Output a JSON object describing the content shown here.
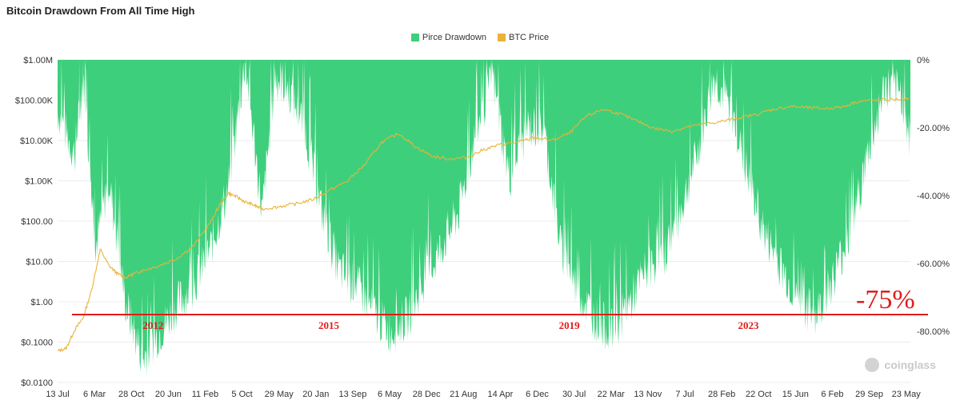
{
  "title": "Bitcoin Drawdown From All Time High",
  "legend": [
    {
      "label": "Pirce Drawdown",
      "color": "#3ecf7c"
    },
    {
      "label": "BTC Price",
      "color": "#e8b33b"
    }
  ],
  "watermark": "coinglass",
  "annotations": {
    "threshold_label": "-75%",
    "threshold_value": -75,
    "threshold_color": "#e21b1b",
    "cycle_years": [
      {
        "label": "2012",
        "x": "2012"
      },
      {
        "label": "2015",
        "x": "2015"
      },
      {
        "label": "2019",
        "x": "2019"
      },
      {
        "label": "2023",
        "x": "2023"
      }
    ]
  },
  "chart_data": {
    "type": "area",
    "x_tick_labels": [
      "13 Jul",
      "6 Mar",
      "28 Oct",
      "20 Jun",
      "11 Feb",
      "5 Oct",
      "29 May",
      "20 Jan",
      "13 Sep",
      "6 May",
      "28 Dec",
      "21 Aug",
      "14 Apr",
      "6 Dec",
      "30 Jul",
      "22 Mar",
      "13 Nov",
      "7 Jul",
      "28 Feb",
      "22 Oct",
      "15 Jun",
      "6 Feb",
      "29 Sep",
      "23 May"
    ],
    "y_left_tick_labels": [
      "$1.00M",
      "$100.00K",
      "$10.00K",
      "$1.00K",
      "$100.00",
      "$10.00",
      "$1.00",
      "$0.1000",
      "$0.0100"
    ],
    "y_left_scale": "log",
    "y_left_range": [
      0.01,
      1000000
    ],
    "y_right_tick_labels": [
      "0%",
      "-20.00%",
      "-40.00%",
      "-60.00%",
      "-80.00%"
    ],
    "y_right_range": [
      -95,
      0
    ],
    "grid": true,
    "legend_position": "top-center",
    "series": [
      {
        "name": "Pirce Drawdown",
        "kind": "area",
        "color": "#3ecf7c",
        "x": [
          0.0,
          0.02,
          0.03,
          0.045,
          0.06,
          0.08,
          0.1,
          0.12,
          0.14,
          0.16,
          0.18,
          0.2,
          0.22,
          0.24,
          0.255,
          0.27,
          0.29,
          0.31,
          0.33,
          0.35,
          0.37,
          0.39,
          0.41,
          0.43,
          0.45,
          0.47,
          0.49,
          0.51,
          0.53,
          0.55,
          0.57,
          0.59,
          0.61,
          0.63,
          0.65,
          0.67,
          0.69,
          0.71,
          0.73,
          0.75,
          0.77,
          0.79,
          0.81,
          0.83,
          0.85,
          0.87,
          0.89,
          0.91,
          0.93,
          0.95,
          0.97,
          0.99,
          1.0
        ],
        "values": [
          -15,
          -28,
          -5,
          -55,
          -35,
          -72,
          -88,
          -80,
          -72,
          -66,
          -55,
          -38,
          0,
          -45,
          -5,
          -8,
          -20,
          -45,
          -62,
          -66,
          -74,
          -80,
          -76,
          -66,
          -55,
          -45,
          -22,
          -5,
          -35,
          -20,
          -20,
          -55,
          -68,
          -76,
          -80,
          -72,
          -62,
          -58,
          -45,
          -28,
          -5,
          -15,
          -35,
          -52,
          -62,
          -72,
          -75,
          -64,
          -50,
          -28,
          -8,
          -10,
          -25
        ]
      },
      {
        "name": "BTC Price",
        "kind": "line",
        "color": "#e8b33b",
        "x": [
          0.0,
          0.01,
          0.02,
          0.03,
          0.04,
          0.05,
          0.06,
          0.07,
          0.08,
          0.09,
          0.1,
          0.12,
          0.14,
          0.16,
          0.18,
          0.19,
          0.2,
          0.21,
          0.22,
          0.23,
          0.24,
          0.26,
          0.28,
          0.3,
          0.32,
          0.34,
          0.36,
          0.38,
          0.4,
          0.42,
          0.44,
          0.46,
          0.48,
          0.5,
          0.52,
          0.54,
          0.56,
          0.58,
          0.6,
          0.62,
          0.64,
          0.66,
          0.68,
          0.7,
          0.72,
          0.74,
          0.76,
          0.78,
          0.8,
          0.82,
          0.84,
          0.86,
          0.88,
          0.9,
          0.92,
          0.94,
          0.96,
          0.98,
          1.0
        ],
        "values": [
          0.06,
          0.07,
          0.2,
          0.4,
          2,
          20,
          8,
          5,
          4,
          5,
          6,
          8,
          12,
          25,
          100,
          250,
          500,
          400,
          300,
          250,
          200,
          230,
          270,
          350,
          600,
          1000,
          2500,
          9000,
          15000,
          7000,
          4000,
          3500,
          3800,
          6000,
          8000,
          9000,
          12000,
          10000,
          15000,
          40000,
          60000,
          45000,
          30000,
          20000,
          17000,
          22000,
          26000,
          30000,
          37000,
          45000,
          60000,
          70000,
          65000,
          62000,
          68000,
          95000,
          100000,
          105000,
          108000
        ]
      }
    ]
  }
}
